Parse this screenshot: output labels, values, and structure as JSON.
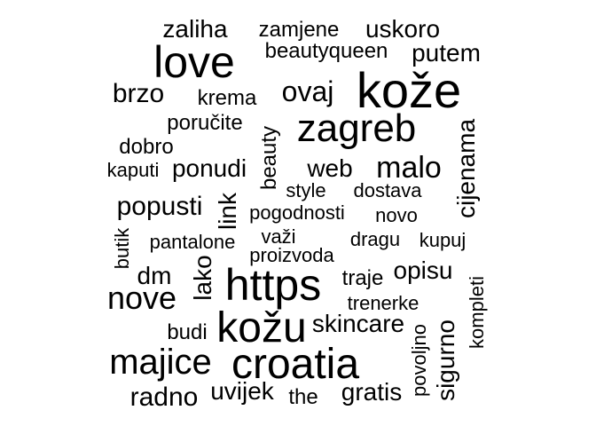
{
  "color": "#000000",
  "words": [
    {
      "text": "zaliha",
      "weight": 3
    },
    {
      "text": "zamjene",
      "weight": 2
    },
    {
      "text": "uskoro",
      "weight": 3
    },
    {
      "text": "love",
      "weight": 8
    },
    {
      "text": "beautyqueen",
      "weight": 2
    },
    {
      "text": "putem",
      "weight": 3
    },
    {
      "text": "kože",
      "weight": 9
    },
    {
      "text": "brzo",
      "weight": 3
    },
    {
      "text": "krema",
      "weight": 2
    },
    {
      "text": "ovaj",
      "weight": 4
    },
    {
      "text": "poručite",
      "weight": 2
    },
    {
      "text": "zagreb",
      "weight": 6
    },
    {
      "text": "beauty",
      "weight": 2
    },
    {
      "text": "cijenama",
      "weight": 3
    },
    {
      "text": "dobro",
      "weight": 2
    },
    {
      "text": "kaputi",
      "weight": 1
    },
    {
      "text": "ponudi",
      "weight": 3
    },
    {
      "text": "web",
      "weight": 3
    },
    {
      "text": "malo",
      "weight": 4
    },
    {
      "text": "style",
      "weight": 2
    },
    {
      "text": "dostava",
      "weight": 2
    },
    {
      "text": "popusti",
      "weight": 3
    },
    {
      "text": "link",
      "weight": 3
    },
    {
      "text": "pogodnosti",
      "weight": 2
    },
    {
      "text": "novo",
      "weight": 2
    },
    {
      "text": "butik",
      "weight": 1
    },
    {
      "text": "pantalone",
      "weight": 1
    },
    {
      "text": "važi",
      "weight": 2
    },
    {
      "text": "dragu",
      "weight": 2
    },
    {
      "text": "kupuj",
      "weight": 2
    },
    {
      "text": "proizvoda",
      "weight": 2
    },
    {
      "text": "dm",
      "weight": 3
    },
    {
      "text": "lako",
      "weight": 3
    },
    {
      "text": "https",
      "weight": 7
    },
    {
      "text": "traje",
      "weight": 2
    },
    {
      "text": "opisu",
      "weight": 3
    },
    {
      "text": "nove",
      "weight": 4
    },
    {
      "text": "trenerke",
      "weight": 2
    },
    {
      "text": "kompleti",
      "weight": 1
    },
    {
      "text": "budi",
      "weight": 2
    },
    {
      "text": "kožu",
      "weight": 7
    },
    {
      "text": "skincare",
      "weight": 3
    },
    {
      "text": "povoljno",
      "weight": 2
    },
    {
      "text": "sigurno",
      "weight": 3
    },
    {
      "text": "majice",
      "weight": 5
    },
    {
      "text": "croatia",
      "weight": 7
    },
    {
      "text": "radno",
      "weight": 3
    },
    {
      "text": "uvijek",
      "weight": 3
    },
    {
      "text": "the",
      "weight": 2
    },
    {
      "text": "gratis",
      "weight": 3
    }
  ]
}
